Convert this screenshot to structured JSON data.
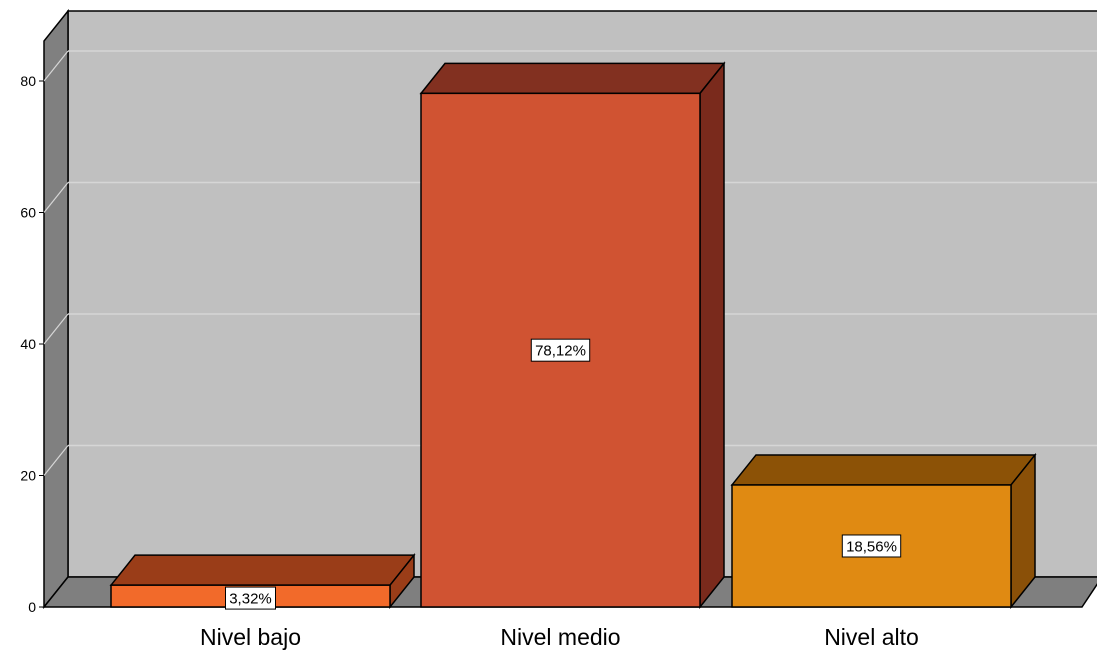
{
  "chart_data": {
    "type": "bar",
    "categories": [
      "Nivel bajo",
      "Nivel medio",
      "Nivel alto"
    ],
    "values": [
      3.32,
      78.12,
      18.56
    ],
    "data_labels": [
      "3,32%",
      "78,12%",
      "18,56%"
    ],
    "ylim": [
      0,
      86
    ],
    "yticks": [
      0,
      20,
      40,
      60,
      80
    ],
    "grid": true,
    "style": "3d",
    "colors": {
      "wall_back": "#c0c0c0",
      "wall_side": "#808080",
      "floor": "#7f7f7f",
      "gridline": "#d6d6d6",
      "bars": [
        {
          "front": "#f26a2a",
          "top": "#9a3d18",
          "side": "#9a3d18"
        },
        {
          "front": "#d05332",
          "top": "#823020",
          "side": "#7a2a1c"
        },
        {
          "front": "#e08a12",
          "top": "#8c5206",
          "side": "#8a5008"
        }
      ]
    }
  }
}
